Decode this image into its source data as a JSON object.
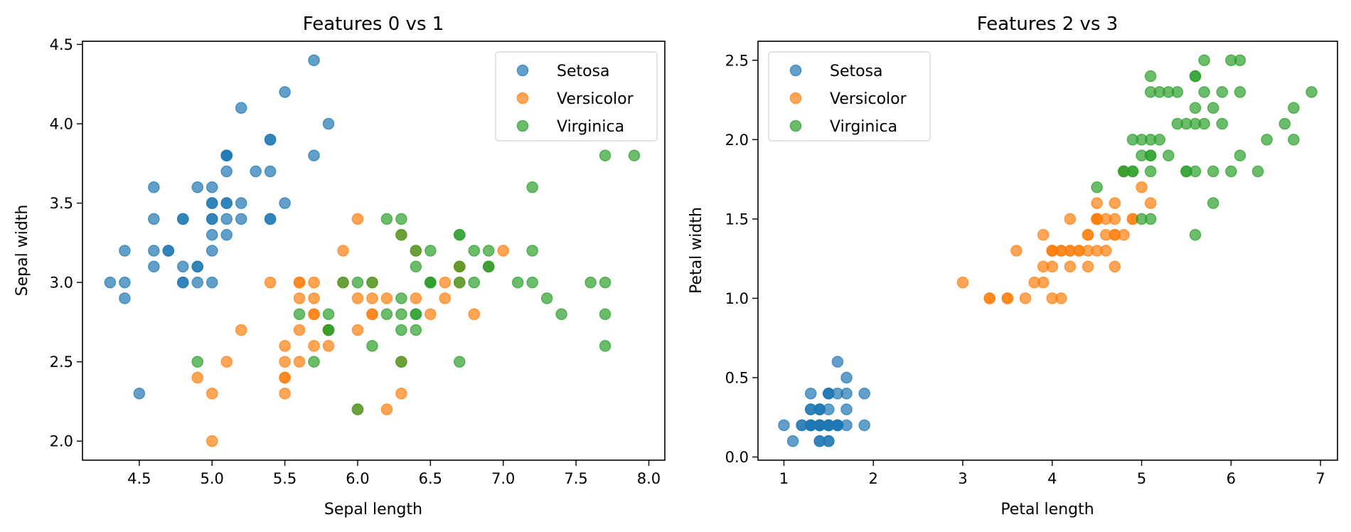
{
  "chart_data": [
    {
      "type": "scatter",
      "title": "Features 0 vs 1",
      "xlabel": "Sepal length",
      "ylabel": "Sepal width",
      "xlim": [
        4.11,
        8.11
      ],
      "ylim": [
        1.88,
        4.52
      ],
      "xticks": [
        4.5,
        5.0,
        5.5,
        6.0,
        6.5,
        7.0,
        7.5,
        8.0
      ],
      "xtick_labels": [
        "4.5",
        "5.0",
        "5.5",
        "6.0",
        "6.5",
        "7.0",
        "7.5",
        "8.0"
      ],
      "yticks": [
        2.0,
        2.5,
        3.0,
        3.5,
        4.0,
        4.5
      ],
      "ytick_labels": [
        "2.0",
        "2.5",
        "3.0",
        "3.5",
        "4.0",
        "4.5"
      ],
      "grid": false,
      "legend": "top-right",
      "series": [
        {
          "name": "Setosa",
          "color": "#1f77b4",
          "alpha": 0.7,
          "x": [
            5.1,
            4.9,
            4.7,
            4.6,
            5.0,
            5.4,
            4.6,
            5.0,
            4.4,
            4.9,
            5.4,
            4.8,
            4.8,
            4.3,
            5.8,
            5.7,
            5.4,
            5.1,
            5.7,
            5.1,
            5.4,
            5.1,
            4.6,
            5.1,
            4.8,
            5.0,
            5.0,
            5.2,
            5.2,
            4.7,
            4.8,
            5.4,
            5.2,
            5.5,
            4.9,
            5.0,
            5.5,
            4.9,
            4.4,
            5.1,
            5.0,
            4.5,
            4.4,
            5.0,
            5.1,
            4.8,
            5.1,
            4.6,
            5.3,
            5.0
          ],
          "y": [
            3.5,
            3.0,
            3.2,
            3.1,
            3.6,
            3.9,
            3.4,
            3.4,
            2.9,
            3.1,
            3.7,
            3.4,
            3.0,
            3.0,
            4.0,
            4.4,
            3.9,
            3.5,
            3.8,
            3.8,
            3.4,
            3.7,
            3.6,
            3.3,
            3.4,
            3.0,
            3.4,
            3.5,
            3.4,
            3.2,
            3.1,
            3.4,
            4.1,
            4.2,
            3.1,
            3.2,
            3.5,
            3.6,
            3.0,
            3.4,
            3.5,
            2.3,
            3.2,
            3.5,
            3.8,
            3.0,
            3.8,
            3.2,
            3.7,
            3.3
          ]
        },
        {
          "name": "Versicolor",
          "color": "#ff7f0e",
          "alpha": 0.7,
          "x": [
            7.0,
            6.4,
            6.9,
            5.5,
            6.5,
            5.7,
            6.3,
            4.9,
            6.6,
            5.2,
            5.0,
            5.9,
            6.0,
            6.1,
            5.6,
            6.7,
            5.6,
            5.8,
            6.2,
            5.6,
            5.9,
            6.1,
            6.3,
            6.1,
            6.4,
            6.6,
            6.8,
            6.7,
            6.0,
            5.7,
            5.5,
            5.5,
            5.8,
            6.0,
            5.4,
            6.0,
            6.7,
            6.3,
            5.6,
            5.5,
            5.5,
            6.1,
            5.8,
            5.0,
            5.6,
            5.7,
            5.7,
            6.2,
            5.1,
            5.7
          ],
          "y": [
            3.2,
            3.2,
            3.1,
            2.3,
            2.8,
            2.8,
            3.3,
            2.4,
            2.9,
            2.7,
            2.0,
            3.0,
            2.2,
            2.9,
            2.9,
            3.1,
            3.0,
            2.7,
            2.2,
            2.5,
            3.2,
            2.8,
            2.5,
            2.8,
            2.9,
            3.0,
            2.8,
            3.0,
            2.9,
            2.6,
            2.4,
            2.4,
            2.7,
            2.7,
            3.0,
            3.4,
            3.1,
            2.3,
            3.0,
            2.5,
            2.6,
            3.0,
            2.6,
            2.3,
            2.7,
            3.0,
            2.9,
            2.9,
            2.5,
            2.8
          ]
        },
        {
          "name": "Virginica",
          "color": "#2ca02c",
          "alpha": 0.7,
          "x": [
            6.3,
            5.8,
            7.1,
            6.3,
            6.5,
            7.6,
            4.9,
            7.3,
            6.7,
            7.2,
            6.5,
            6.4,
            6.8,
            5.7,
            5.8,
            6.4,
            6.5,
            7.7,
            7.7,
            6.0,
            6.9,
            5.6,
            7.7,
            6.3,
            6.7,
            7.2,
            6.2,
            6.1,
            6.4,
            7.2,
            7.4,
            7.9,
            6.4,
            6.3,
            6.1,
            7.7,
            6.3,
            6.4,
            6.0,
            6.9,
            6.7,
            6.9,
            5.8,
            6.8,
            6.7,
            6.7,
            6.3,
            6.5,
            6.2,
            5.9
          ],
          "y": [
            3.3,
            2.7,
            3.0,
            2.9,
            3.0,
            3.0,
            2.5,
            2.9,
            2.5,
            3.6,
            3.2,
            2.7,
            3.0,
            2.5,
            2.8,
            3.2,
            3.0,
            3.8,
            2.6,
            2.2,
            3.2,
            2.8,
            2.8,
            2.7,
            3.3,
            3.2,
            2.8,
            3.0,
            2.8,
            3.0,
            2.8,
            3.8,
            2.8,
            2.8,
            2.6,
            3.0,
            3.4,
            3.1,
            3.0,
            3.1,
            3.1,
            3.1,
            2.7,
            3.2,
            3.3,
            3.0,
            2.5,
            3.0,
            3.4,
            3.0
          ]
        }
      ]
    },
    {
      "type": "scatter",
      "title": "Features 2 vs 3",
      "xlabel": "Petal length",
      "ylabel": "Petal width",
      "xlim": [
        0.71,
        7.19
      ],
      "ylim": [
        -0.02,
        2.62
      ],
      "xticks": [
        1,
        2,
        3,
        4,
        5,
        6,
        7
      ],
      "xtick_labels": [
        "1",
        "2",
        "3",
        "4",
        "5",
        "6",
        "7"
      ],
      "yticks": [
        0.0,
        0.5,
        1.0,
        1.5,
        2.0,
        2.5
      ],
      "ytick_labels": [
        "0.0",
        "0.5",
        "1.0",
        "1.5",
        "2.0",
        "2.5"
      ],
      "grid": false,
      "legend": "top-left",
      "series": [
        {
          "name": "Setosa",
          "color": "#1f77b4",
          "alpha": 0.7,
          "x": [
            1.4,
            1.4,
            1.3,
            1.5,
            1.4,
            1.7,
            1.4,
            1.5,
            1.4,
            1.5,
            1.5,
            1.6,
            1.4,
            1.1,
            1.2,
            1.5,
            1.3,
            1.4,
            1.7,
            1.5,
            1.7,
            1.5,
            1.0,
            1.7,
            1.9,
            1.6,
            1.6,
            1.5,
            1.4,
            1.6,
            1.6,
            1.5,
            1.5,
            1.4,
            1.5,
            1.2,
            1.3,
            1.4,
            1.3,
            1.5,
            1.3,
            1.3,
            1.3,
            1.6,
            1.9,
            1.4,
            1.6,
            1.4,
            1.5,
            1.4
          ],
          "y": [
            0.2,
            0.2,
            0.2,
            0.2,
            0.2,
            0.4,
            0.3,
            0.2,
            0.2,
            0.1,
            0.2,
            0.2,
            0.1,
            0.1,
            0.2,
            0.4,
            0.4,
            0.3,
            0.3,
            0.3,
            0.2,
            0.4,
            0.2,
            0.5,
            0.2,
            0.2,
            0.4,
            0.2,
            0.2,
            0.2,
            0.2,
            0.4,
            0.1,
            0.2,
            0.2,
            0.2,
            0.2,
            0.1,
            0.2,
            0.2,
            0.3,
            0.3,
            0.2,
            0.6,
            0.4,
            0.3,
            0.2,
            0.2,
            0.2,
            0.2
          ]
        },
        {
          "name": "Versicolor",
          "color": "#ff7f0e",
          "alpha": 0.7,
          "x": [
            4.7,
            4.5,
            4.9,
            4.0,
            4.6,
            4.5,
            4.7,
            3.3,
            4.6,
            3.9,
            3.5,
            4.2,
            4.0,
            4.7,
            3.6,
            4.4,
            4.5,
            4.1,
            4.5,
            3.9,
            4.8,
            4.0,
            4.9,
            4.7,
            4.3,
            4.4,
            4.8,
            5.0,
            4.5,
            3.5,
            3.8,
            3.7,
            3.9,
            5.1,
            4.5,
            4.5,
            4.7,
            4.4,
            4.1,
            4.0,
            4.4,
            4.6,
            4.0,
            3.3,
            4.2,
            4.2,
            4.2,
            4.3,
            3.0,
            4.1
          ],
          "y": [
            1.4,
            1.5,
            1.5,
            1.3,
            1.5,
            1.3,
            1.6,
            1.0,
            1.3,
            1.4,
            1.0,
            1.5,
            1.0,
            1.4,
            1.3,
            1.4,
            1.5,
            1.0,
            1.5,
            1.1,
            1.8,
            1.3,
            1.5,
            1.2,
            1.3,
            1.4,
            1.4,
            1.7,
            1.5,
            1.0,
            1.1,
            1.0,
            1.2,
            1.6,
            1.5,
            1.6,
            1.5,
            1.3,
            1.3,
            1.3,
            1.2,
            1.4,
            1.2,
            1.0,
            1.3,
            1.2,
            1.3,
            1.3,
            1.1,
            1.3
          ]
        },
        {
          "name": "Virginica",
          "color": "#2ca02c",
          "alpha": 0.7,
          "x": [
            6.0,
            5.1,
            5.9,
            5.6,
            5.8,
            6.6,
            4.5,
            6.3,
            5.8,
            6.1,
            5.1,
            5.3,
            5.5,
            5.0,
            5.1,
            5.3,
            5.5,
            6.7,
            6.9,
            5.0,
            5.7,
            4.9,
            6.7,
            4.9,
            5.7,
            6.0,
            4.8,
            4.9,
            5.6,
            5.8,
            6.1,
            6.4,
            5.6,
            5.1,
            5.6,
            6.1,
            5.6,
            5.5,
            4.8,
            5.4,
            5.6,
            5.1,
            5.1,
            5.9,
            5.7,
            5.2,
            5.0,
            5.2,
            5.4,
            5.1
          ],
          "y": [
            2.5,
            1.9,
            2.1,
            1.8,
            2.2,
            2.1,
            1.7,
            1.8,
            1.8,
            2.5,
            2.0,
            1.9,
            2.1,
            2.0,
            2.4,
            2.3,
            1.8,
            2.2,
            2.3,
            1.5,
            2.3,
            2.0,
            2.0,
            1.8,
            2.1,
            1.8,
            1.8,
            1.8,
            2.1,
            1.6,
            1.9,
            2.0,
            2.2,
            1.5,
            1.4,
            2.3,
            2.4,
            1.8,
            1.8,
            2.1,
            2.4,
            2.3,
            1.9,
            2.3,
            2.5,
            2.3,
            1.9,
            2.0,
            2.3,
            1.8
          ]
        }
      ]
    }
  ]
}
